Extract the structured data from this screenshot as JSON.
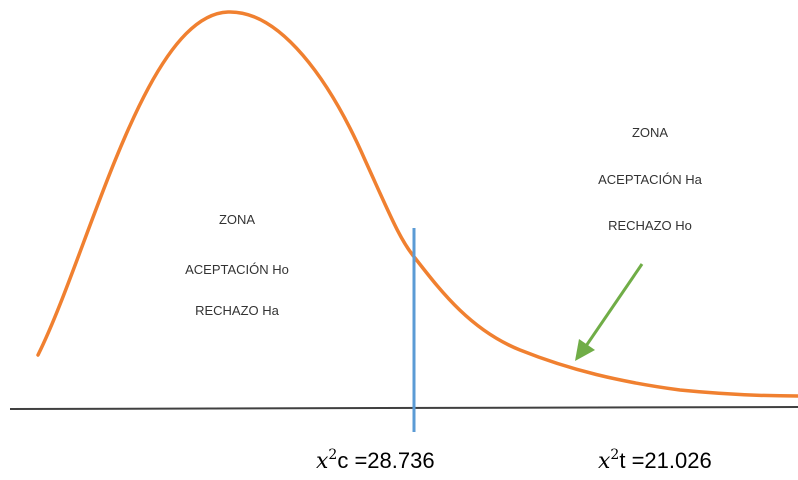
{
  "zone_left": {
    "line1": "ZONA",
    "line2": "ACEPTACIÓN Ho",
    "line3": "RECHAZO Ha"
  },
  "zone_right": {
    "line1": "ZONA",
    "line2": "ACEPTACIÓN Ha",
    "line3": "RECHAZO Ho"
  },
  "stat_calc": {
    "symbol": "x",
    "exponent": "2",
    "subscript": "c",
    "value": " =28.736"
  },
  "stat_table": {
    "symbol": "x",
    "exponent": "2",
    "subscript": "t",
    "value": " =21.026"
  },
  "colors": {
    "curve": "#f08030",
    "critical_line": "#5b9bd5",
    "arrow": "#70ad47",
    "axis": "#404040"
  }
}
